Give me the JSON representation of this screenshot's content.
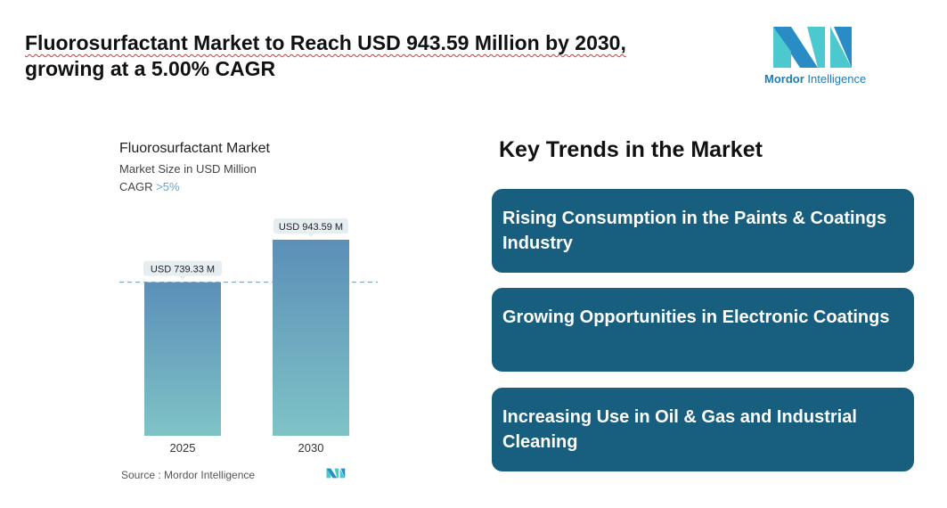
{
  "header": {
    "title_line1": "Fluorosurfactant Market to Reach USD 943.59 Million by 2030,",
    "title_line2": "growing at a 5.00% CAGR"
  },
  "logo": {
    "word1": "Mordor",
    "word2": "Intelligence"
  },
  "chart_data": {
    "type": "bar",
    "title": "Fluorosurfactant Market",
    "subtitle": "Market Size in USD Million",
    "cagr_label": "CAGR",
    "cagr_value": ">5%",
    "categories": [
      "2025",
      "2030"
    ],
    "values": [
      739.33,
      943.59
    ],
    "data_labels": [
      "USD 739.33 M",
      "USD 943.59 M"
    ],
    "reference_line": 739.33,
    "colors": {
      "bar_top": "#5b8fb8",
      "bar_bottom": "#7fc3c6"
    },
    "grid": false,
    "source": "Source :  Mordor Intelligence"
  },
  "trends": {
    "heading": "Key Trends in the Market",
    "items": [
      "Rising Consumption in the Paints & Coatings Industry",
      "Growing Opportunities in Electronic Coatings",
      "Increasing Use in Oil & Gas and Industrial Cleaning"
    ],
    "color": "#175e7f"
  }
}
